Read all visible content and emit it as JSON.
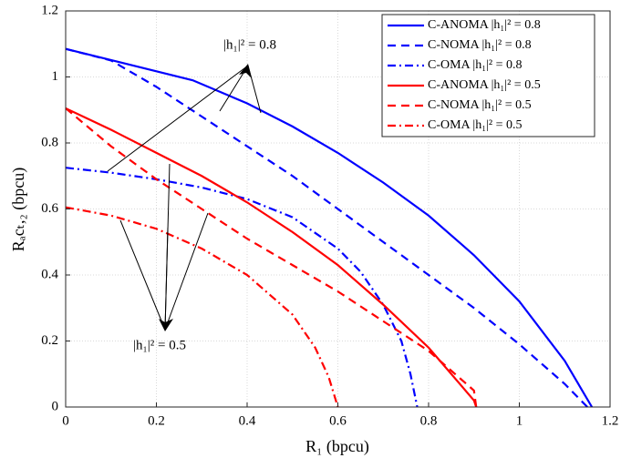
{
  "chart_data": {
    "type": "line",
    "xlabel": "R₁ (bpcu)",
    "ylabel": "Rₐcₜ,₂ (bpcu)",
    "xlim": [
      0,
      1.2
    ],
    "ylim": [
      0,
      1.2
    ],
    "xticks": [
      0,
      0.2,
      0.4,
      0.6,
      0.8,
      1,
      1.2
    ],
    "yticks": [
      0,
      0.2,
      0.4,
      0.6,
      0.8,
      1,
      1.2
    ],
    "grid": true,
    "legend": "upper right",
    "annotations": [
      "|h₁|² = 0.8",
      "|h₁|² = 0.5"
    ],
    "series": [
      {
        "name": "C-ANOMA |h₁|² = 0.8",
        "color": "#0000ff",
        "linestyle": "solid",
        "x": [
          0,
          0.28,
          0.4,
          0.5,
          0.6,
          0.7,
          0.8,
          0.9,
          1.0,
          1.1,
          1.16
        ],
        "values": [
          1.085,
          0.99,
          0.92,
          0.85,
          0.77,
          0.68,
          0.58,
          0.46,
          0.32,
          0.14,
          0
        ]
      },
      {
        "name": "C-NOMA |h₁|² = 0.8",
        "color": "#0000ff",
        "linestyle": "dashed",
        "x": [
          0,
          0.1,
          0.2,
          0.3,
          0.4,
          0.5,
          0.6,
          0.7,
          0.8,
          0.9,
          1.0,
          1.1,
          1.15
        ],
        "values": [
          1.085,
          1.05,
          0.97,
          0.88,
          0.79,
          0.7,
          0.6,
          0.5,
          0.4,
          0.3,
          0.19,
          0.07,
          0
        ]
      },
      {
        "name": "C-OMA |h₁|² = 0.8",
        "color": "#0000ff",
        "linestyle": "dashdot",
        "x": [
          0,
          0.1,
          0.2,
          0.3,
          0.4,
          0.5,
          0.6,
          0.65,
          0.7,
          0.74,
          0.76,
          0.775
        ],
        "values": [
          0.725,
          0.71,
          0.69,
          0.665,
          0.63,
          0.575,
          0.48,
          0.41,
          0.31,
          0.2,
          0.1,
          0
        ]
      },
      {
        "name": "C-ANOMA |h₁|² = 0.5",
        "color": "#ff0000",
        "linestyle": "solid",
        "x": [
          0,
          0.1,
          0.2,
          0.3,
          0.4,
          0.5,
          0.6,
          0.7,
          0.8,
          0.9,
          0.905
        ],
        "values": [
          0.905,
          0.84,
          0.77,
          0.7,
          0.62,
          0.53,
          0.43,
          0.31,
          0.18,
          0.02,
          0
        ]
      },
      {
        "name": "C-NOMA |h₁|² = 0.5",
        "color": "#ff0000",
        "linestyle": "dashed",
        "x": [
          0,
          0.1,
          0.2,
          0.3,
          0.4,
          0.5,
          0.6,
          0.7,
          0.8,
          0.9,
          0.905
        ],
        "values": [
          0.905,
          0.79,
          0.69,
          0.6,
          0.51,
          0.43,
          0.35,
          0.26,
          0.17,
          0.05,
          0
        ]
      },
      {
        "name": "C-OMA |h₁|² = 0.5",
        "color": "#ff0000",
        "linestyle": "dashdot",
        "x": [
          0,
          0.1,
          0.2,
          0.3,
          0.4,
          0.5,
          0.55,
          0.58,
          0.6
        ],
        "values": [
          0.605,
          0.58,
          0.54,
          0.48,
          0.4,
          0.28,
          0.18,
          0.09,
          0
        ]
      }
    ]
  }
}
